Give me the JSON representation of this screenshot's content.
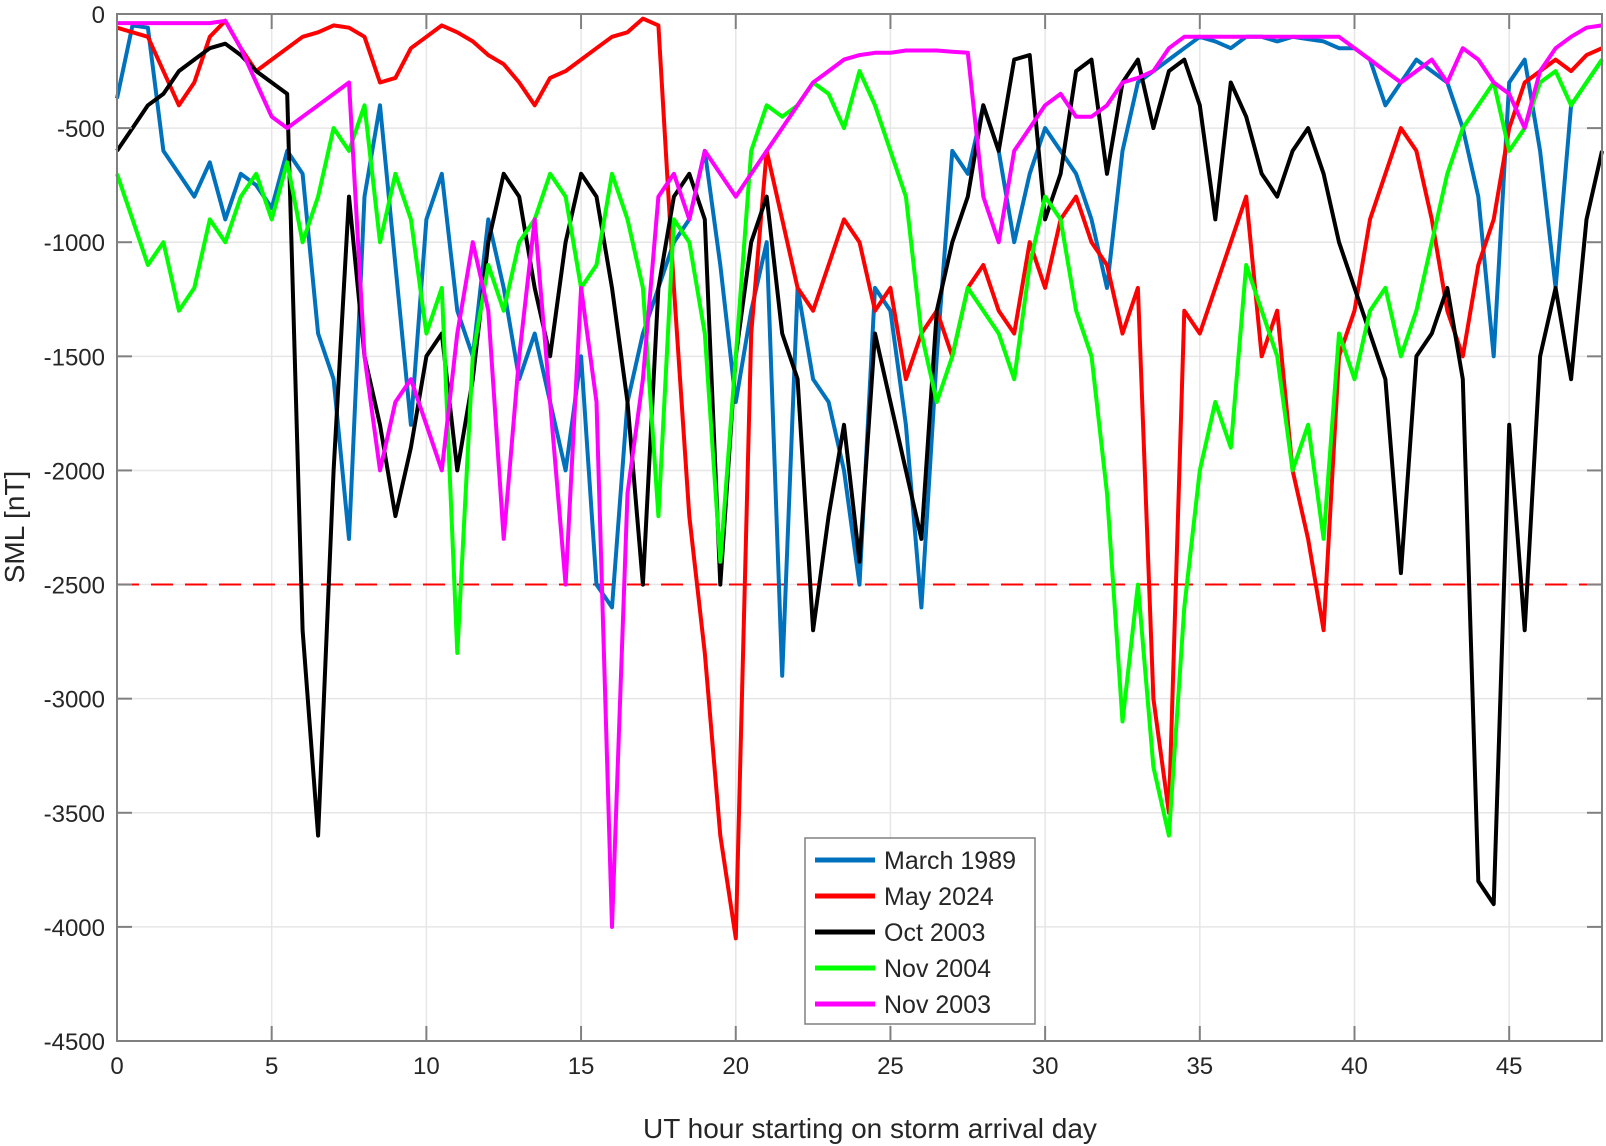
{
  "chart_data": {
    "type": "line",
    "title": "",
    "xlabel": "UT hour starting on storm arrival day",
    "ylabel": "SML [nT]",
    "xlim": [
      0,
      48
    ],
    "ylim": [
      -4500,
      0
    ],
    "grid": true,
    "legend_position": "lower center (inside)",
    "x_ticks": [
      0,
      5,
      10,
      15,
      20,
      25,
      30,
      35,
      40,
      45
    ],
    "y_ticks": [
      0,
      -500,
      -1000,
      -1500,
      -2000,
      -2500,
      -3000,
      -3500,
      -4000,
      -4500
    ],
    "threshold_line": {
      "y": -2500,
      "style": "dashed",
      "color": "#ff0000"
    },
    "x_step_hours": 0.5,
    "series": [
      {
        "name": "March 1989",
        "color": "#0072bd",
        "values": [
          -370,
          -50,
          -60,
          -600,
          -700,
          -800,
          -650,
          -900,
          -700,
          -750,
          -850,
          -600,
          -700,
          -1400,
          -1600,
          -2300,
          -800,
          -400,
          -1100,
          -1800,
          -900,
          -700,
          -1300,
          -1500,
          -900,
          -1200,
          -1600,
          -1400,
          -1700,
          -2000,
          -1500,
          -2500,
          -2600,
          -1700,
          -1400,
          -1200,
          -1000,
          -900,
          -600,
          -1100,
          -1700,
          -1300,
          -1000,
          -2900,
          -1200,
          -1600,
          -1700,
          -2000,
          -2500,
          -1200,
          -1300,
          -1800,
          -2600,
          -1500,
          -600,
          -700,
          -400,
          -600,
          -1000,
          -700,
          -500,
          -600,
          -700,
          -900,
          -1200,
          -600,
          -300,
          -250,
          -200,
          -150,
          -100,
          -120,
          -150,
          -100,
          -100,
          -120,
          -100,
          -110,
          -120,
          -150,
          -150,
          -200,
          -400,
          -300,
          -200,
          -250,
          -300,
          -500,
          -800,
          -1500,
          -300,
          -200,
          -600,
          -1200,
          -400,
          -300,
          -200
        ]
      },
      {
        "name": "May 2024",
        "color": "#ff0000",
        "values": [
          -60,
          -80,
          -100,
          -250,
          -400,
          -300,
          -100,
          -30,
          -150,
          -250,
          -200,
          -150,
          -100,
          -80,
          -50,
          -60,
          -100,
          -300,
          -280,
          -150,
          -100,
          -50,
          -80,
          -120,
          -180,
          -220,
          -300,
          -400,
          -280,
          -250,
          -200,
          -150,
          -100,
          -80,
          -20,
          -50,
          -1200,
          -2200,
          -2800,
          -3600,
          -4050,
          -1400,
          -600,
          -900,
          -1200,
          -1300,
          -1100,
          -900,
          -1000,
          -1300,
          -1200,
          -1600,
          -1400,
          -1300,
          -1500,
          -1200,
          -1100,
          -1300,
          -1400,
          -1000,
          -1200,
          -900,
          -800,
          -1000,
          -1100,
          -1400,
          -1200,
          -3000,
          -3500,
          -1300,
          -1400,
          -1200,
          -1000,
          -800,
          -1500,
          -1300,
          -2000,
          -2300,
          -2700,
          -1500,
          -1300,
          -900,
          -700,
          -500,
          -600,
          -900,
          -1300,
          -1500,
          -1100,
          -900,
          -500,
          -300,
          -250,
          -200,
          -250,
          -180,
          -150
        ]
      },
      {
        "name": "Oct 2003",
        "color": "#000000",
        "values": [
          -600,
          -500,
          -400,
          -350,
          -250,
          -200,
          -150,
          -130,
          -180,
          -250,
          -300,
          -350,
          -2700,
          -3600,
          -2000,
          -800,
          -1500,
          -1800,
          -2200,
          -1900,
          -1500,
          -1400,
          -2000,
          -1600,
          -1000,
          -700,
          -800,
          -1200,
          -1500,
          -1000,
          -700,
          -800,
          -1200,
          -1700,
          -2500,
          -1200,
          -800,
          -700,
          -900,
          -2500,
          -1500,
          -1000,
          -800,
          -1400,
          -1600,
          -2700,
          -2200,
          -1800,
          -2400,
          -1400,
          -1700,
          -2000,
          -2300,
          -1300,
          -1000,
          -800,
          -400,
          -600,
          -200,
          -180,
          -900,
          -700,
          -250,
          -200,
          -700,
          -300,
          -200,
          -500,
          -250,
          -200,
          -400,
          -900,
          -300,
          -450,
          -700,
          -800,
          -600,
          -500,
          -700,
          -1000,
          -1200,
          -1400,
          -1600,
          -2450,
          -1500,
          -1400,
          -1200,
          -1600,
          -3800,
          -3900,
          -1800,
          -2700,
          -1500,
          -1200,
          -1600,
          -900,
          -600
        ]
      },
      {
        "name": "Nov 2004",
        "color": "#00ff00",
        "values": [
          -700,
          -900,
          -1100,
          -1000,
          -1300,
          -1200,
          -900,
          -1000,
          -800,
          -700,
          -900,
          -650,
          -1000,
          -800,
          -500,
          -600,
          -400,
          -1000,
          -700,
          -900,
          -1400,
          -1200,
          -2800,
          -1500,
          -1100,
          -1300,
          -1000,
          -900,
          -700,
          -800,
          -1200,
          -1100,
          -700,
          -900,
          -1200,
          -2200,
          -900,
          -1000,
          -1400,
          -2400,
          -1500,
          -600,
          -400,
          -450,
          -400,
          -300,
          -350,
          -500,
          -250,
          -400,
          -600,
          -800,
          -1400,
          -1700,
          -1500,
          -1200,
          -1300,
          -1400,
          -1600,
          -1100,
          -800,
          -900,
          -1300,
          -1500,
          -2100,
          -3100,
          -2500,
          -3300,
          -3600,
          -2600,
          -2000,
          -1700,
          -1900,
          -1100,
          -1300,
          -1500,
          -2000,
          -1800,
          -2300,
          -1400,
          -1600,
          -1300,
          -1200,
          -1500,
          -1300,
          -1000,
          -700,
          -500,
          -400,
          -300,
          -600,
          -500,
          -300,
          -250,
          -400,
          -300,
          -200
        ]
      },
      {
        "name": "Nov 2003",
        "color": "#ff00ff",
        "values": [
          -40,
          -40,
          -40,
          -40,
          -40,
          -40,
          -40,
          -30,
          -150,
          -300,
          -450,
          -500,
          -450,
          -400,
          -350,
          -300,
          -1500,
          -2000,
          -1700,
          -1600,
          -1800,
          -2000,
          -1400,
          -1000,
          -1300,
          -2300,
          -1500,
          -900,
          -1700,
          -2500,
          -1200,
          -1700,
          -4000,
          -2100,
          -1600,
          -800,
          -700,
          -900,
          -600,
          -700,
          -800,
          -700,
          -600,
          -500,
          -400,
          -300,
          -250,
          -200,
          -180,
          -170,
          -170,
          -160,
          -160,
          -160,
          -165,
          -170,
          -800,
          -1000,
          -600,
          -500,
          -400,
          -350,
          -450,
          -450,
          -400,
          -300,
          -280,
          -250,
          -150,
          -100,
          -100,
          -100,
          -100,
          -100,
          -100,
          -100,
          -100,
          -100,
          -100,
          -100,
          -150,
          -200,
          -250,
          -300,
          -250,
          -200,
          -300,
          -150,
          -200,
          -300,
          -350,
          -500,
          -250,
          -150,
          -100,
          -60,
          -50
        ]
      }
    ]
  },
  "axes": {
    "xlabel": "UT hour starting on storm arrival day",
    "ylabel": "SML [nT]"
  },
  "legend": {
    "items": [
      {
        "label": "March 1989",
        "color": "#0072bd"
      },
      {
        "label": "May 2024",
        "color": "#ff0000"
      },
      {
        "label": "Oct 2003",
        "color": "#000000"
      },
      {
        "label": "Nov 2004",
        "color": "#00ff00"
      },
      {
        "label": "Nov 2003",
        "color": "#ff00ff"
      }
    ]
  }
}
